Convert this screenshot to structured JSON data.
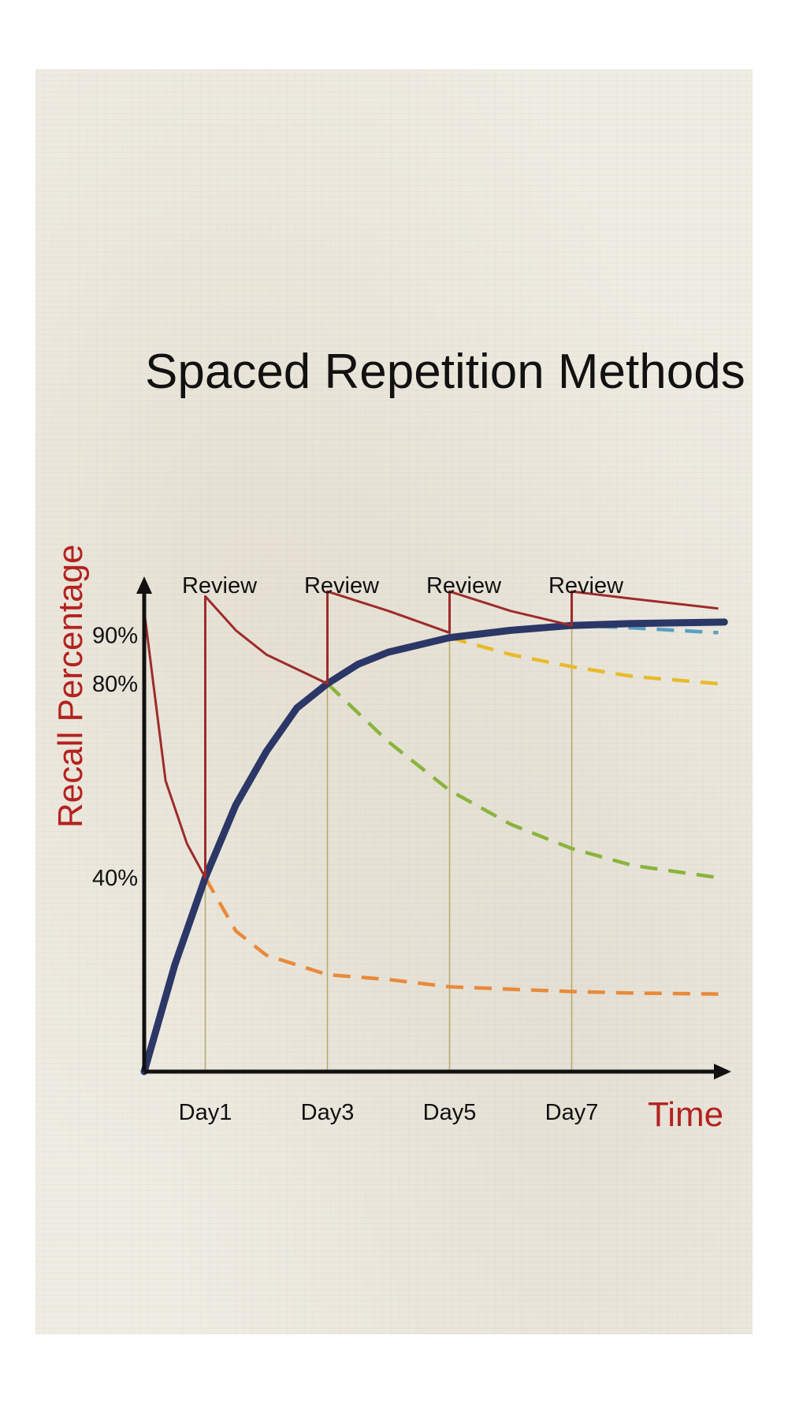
{
  "chart_data": {
    "type": "line",
    "title": "Spaced Repetition Methods",
    "xlabel": "Time",
    "ylabel": "Recall Percentage",
    "x_ticks": [
      {
        "label": "Day1",
        "x": 1
      },
      {
        "label": "Day3",
        "x": 3
      },
      {
        "label": "Day5",
        "x": 5
      },
      {
        "label": "Day7",
        "x": 7
      }
    ],
    "y_ticks": [
      {
        "label": "90%",
        "y": 90
      },
      {
        "label": "80%",
        "y": 80
      },
      {
        "label": "40%",
        "y": 40
      }
    ],
    "review_markers": [
      {
        "label": "Review",
        "x": 1
      },
      {
        "label": "Review",
        "x": 3
      },
      {
        "label": "Review",
        "x": 5
      },
      {
        "label": "Review",
        "x": 7
      }
    ],
    "xlim": [
      0,
      9.5
    ],
    "ylim": [
      0,
      100
    ],
    "grid": false,
    "series": [
      {
        "color": "#2b3766",
        "style": "solid",
        "points": [
          [
            0,
            0
          ],
          [
            0.5,
            22
          ],
          [
            1,
            40
          ],
          [
            1.5,
            55
          ],
          [
            2,
            66
          ],
          [
            2.5,
            75
          ],
          [
            3,
            80
          ],
          [
            3.5,
            84
          ],
          [
            4,
            86.5
          ],
          [
            5,
            89.5
          ],
          [
            6,
            91
          ],
          [
            7,
            92
          ],
          [
            8,
            92.4
          ],
          [
            9,
            92.6
          ],
          [
            9.5,
            92.7
          ]
        ]
      },
      {
        "color": "#9e2b2b",
        "style": "solid",
        "points": [
          [
            0,
            95
          ],
          [
            0.35,
            60
          ],
          [
            0.7,
            47
          ],
          [
            1,
            40
          ],
          [
            1,
            98
          ],
          [
            1.5,
            91
          ],
          [
            2,
            86
          ],
          [
            3,
            80
          ],
          [
            3,
            99
          ],
          [
            4,
            95
          ],
          [
            5,
            90.5
          ],
          [
            5,
            99
          ],
          [
            6,
            95
          ],
          [
            7,
            92
          ],
          [
            7,
            99
          ],
          [
            8,
            97.5
          ],
          [
            9.4,
            95.5
          ]
        ]
      },
      {
        "color": "#e88a3c",
        "style": "dashed",
        "points": [
          [
            1,
            40
          ],
          [
            1.5,
            29
          ],
          [
            2,
            24
          ],
          [
            3,
            20
          ],
          [
            4,
            19
          ],
          [
            5,
            17.5
          ],
          [
            6,
            17
          ],
          [
            7,
            16.5
          ],
          [
            8,
            16.2
          ],
          [
            9.4,
            16
          ]
        ]
      },
      {
        "color": "#8ab43c",
        "style": "dashed",
        "points": [
          [
            3,
            80
          ],
          [
            4,
            68
          ],
          [
            5,
            58
          ],
          [
            6,
            51
          ],
          [
            7,
            46
          ],
          [
            8,
            42.5
          ],
          [
            9.4,
            40
          ]
        ]
      },
      {
        "color": "#e8bb2c",
        "style": "dashed",
        "points": [
          [
            5,
            89.5
          ],
          [
            6,
            86
          ],
          [
            7,
            83.5
          ],
          [
            8,
            81.5
          ],
          [
            9.4,
            80
          ]
        ]
      },
      {
        "color": "#5b9fbf",
        "style": "dashed",
        "points": [
          [
            7,
            92
          ],
          [
            8,
            91.5
          ],
          [
            9.4,
            90.5
          ]
        ]
      }
    ]
  }
}
